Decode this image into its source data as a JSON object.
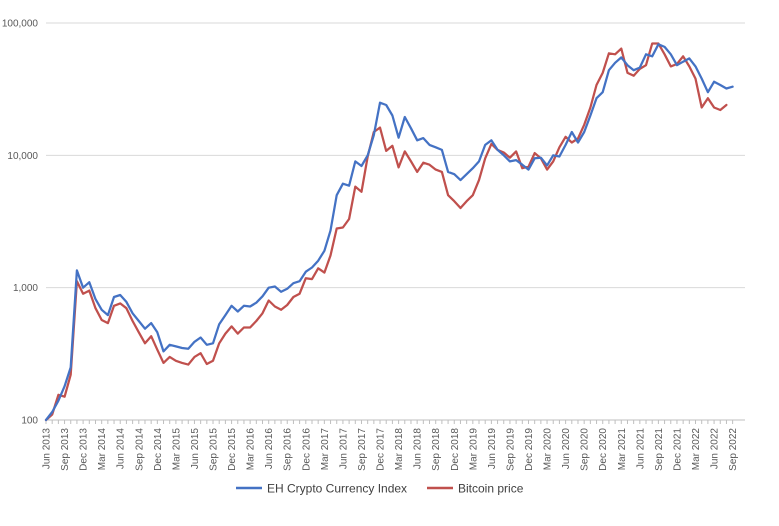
{
  "chart_data": {
    "type": "line",
    "title": "",
    "xlabel": "",
    "ylabel": "",
    "y_scale": "log",
    "ylim": [
      100,
      100000
    ],
    "y_ticks": [
      100,
      1000,
      10000,
      100000
    ],
    "y_tick_labels": [
      "100",
      "1,000",
      "10,000",
      "100,000"
    ],
    "x_ticks": [
      "Jun 2013",
      "Sep 2013",
      "Dec 2013",
      "Mar 2014",
      "Jun 2014",
      "Sep 2014",
      "Dec 2014",
      "Mar 2015",
      "Jun 2015",
      "Sep 2015",
      "Dec 2015",
      "Mar 2016",
      "Jun 2016",
      "Sep 2016",
      "Dec 2016",
      "Mar 2017",
      "Jun 2017",
      "Sep 2017",
      "Dec 2017",
      "Mar 2018",
      "Jun 2018",
      "Sep 2018",
      "Dec 2018",
      "Mar 2019",
      "Jun 2019",
      "Sep 2019",
      "Dec 2019",
      "Mar 2020",
      "Jun 2020",
      "Sep 2020",
      "Dec 2020",
      "Mar 2021",
      "Jun 2021",
      "Sep 2021",
      "Dec 2021",
      "Mar 2022",
      "Jun 2022",
      "Sep 2022"
    ],
    "x_start": "Jun 2013",
    "x_end": "Nov 2022",
    "grid": true,
    "legend_position": "bottom",
    "series": [
      {
        "name": "EH Crypto Currency Index",
        "color": "#4472C4",
        "values": [
          100,
          115,
          140,
          180,
          250,
          1350,
          1000,
          1100,
          820,
          680,
          620,
          850,
          880,
          780,
          640,
          560,
          490,
          540,
          460,
          330,
          370,
          360,
          350,
          345,
          390,
          420,
          370,
          380,
          530,
          620,
          730,
          660,
          730,
          720,
          770,
          860,
          1000,
          1020,
          930,
          980,
          1080,
          1120,
          1320,
          1420,
          1600,
          1900,
          2700,
          5000,
          6100,
          5900,
          9000,
          8300,
          10000,
          14200,
          25000,
          24000,
          20000,
          13600,
          19500,
          16000,
          13000,
          13500,
          12000,
          11500,
          11000,
          7500,
          7200,
          6500,
          7200,
          8000,
          9000,
          12000,
          13000,
          11000,
          10000,
          9000,
          9200,
          8500,
          7800,
          9500,
          9600,
          8400,
          10000,
          9800,
          12000,
          15000,
          12500,
          15000,
          20000,
          27000,
          30000,
          44000,
          50000,
          55000,
          48000,
          44000,
          46000,
          58000,
          56000,
          69000,
          66000,
          58000,
          48000,
          51000,
          54000,
          47000,
          38000,
          30000,
          36000,
          34000,
          32000,
          33000
        ]
      },
      {
        "name": "Bitcoin price",
        "color": "#C0504D",
        "values": [
          100,
          110,
          155,
          150,
          220,
          1120,
          900,
          950,
          700,
          570,
          540,
          730,
          760,
          700,
          560,
          460,
          380,
          430,
          340,
          270,
          300,
          280,
          270,
          262,
          300,
          320,
          265,
          280,
          380,
          450,
          510,
          450,
          500,
          500,
          560,
          640,
          800,
          720,
          680,
          740,
          850,
          900,
          1180,
          1160,
          1400,
          1300,
          1750,
          2800,
          2850,
          3300,
          5800,
          5300,
          9800,
          15000,
          16200,
          10800,
          11800,
          8100,
          10700,
          9000,
          7500,
          8800,
          8500,
          7800,
          7500,
          5000,
          4500,
          4000,
          4500,
          5000,
          6500,
          9500,
          12200,
          11000,
          10500,
          9600,
          10700,
          8000,
          8200,
          10400,
          9500,
          7800,
          9000,
          11500,
          13800,
          12500,
          13400,
          17000,
          23000,
          34000,
          42000,
          59000,
          58000,
          64000,
          42000,
          40000,
          45000,
          48000,
          70000,
          70000,
          58000,
          47000,
          49000,
          56000,
          47000,
          38000,
          23000,
          27000,
          23000,
          22000,
          24000
        ]
      }
    ]
  }
}
